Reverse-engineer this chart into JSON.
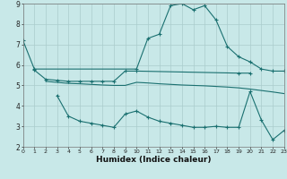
{
  "line1_x": [
    0,
    1,
    10,
    11,
    12,
    13,
    14,
    15,
    16,
    17,
    18,
    19,
    20,
    21,
    22,
    23
  ],
  "line1_y": [
    7.2,
    5.8,
    5.8,
    7.3,
    7.5,
    8.9,
    9.0,
    8.7,
    8.9,
    8.2,
    6.9,
    6.4,
    6.15,
    5.8,
    5.7,
    5.7
  ],
  "line2_x": [
    1,
    2,
    3,
    4,
    5,
    6,
    7,
    8,
    9,
    10,
    19,
    20
  ],
  "line2_y": [
    5.75,
    5.3,
    5.25,
    5.2,
    5.2,
    5.2,
    5.2,
    5.2,
    5.7,
    5.7,
    5.6,
    5.6
  ],
  "line3_x": [
    2,
    3,
    4,
    5,
    6,
    7,
    8,
    9,
    10,
    11,
    12,
    13,
    14,
    15,
    16,
    17,
    18,
    19,
    20,
    21,
    22,
    23
  ],
  "line3_y": [
    5.2,
    5.15,
    5.1,
    5.08,
    5.05,
    5.02,
    5.0,
    5.0,
    5.15,
    5.12,
    5.08,
    5.05,
    5.02,
    5.0,
    4.98,
    4.95,
    4.92,
    4.88,
    4.82,
    4.75,
    4.68,
    4.6
  ],
  "line4_x": [
    3,
    4,
    5,
    6,
    7,
    8,
    9,
    10,
    11,
    12,
    13,
    14,
    15,
    16,
    17,
    18,
    19,
    20,
    21,
    22,
    23
  ],
  "line4_y": [
    4.5,
    3.5,
    3.25,
    3.15,
    3.05,
    2.95,
    3.6,
    3.75,
    3.45,
    3.25,
    3.15,
    3.05,
    2.95,
    2.95,
    3.0,
    2.95,
    2.95,
    4.7,
    3.3,
    2.35,
    2.8
  ],
  "color": "#1a7070",
  "bg_color": "#c8e8e8",
  "grid_color": "#aacccc",
  "xlabel": "Humidex (Indice chaleur)",
  "xlim": [
    0,
    23
  ],
  "ylim": [
    2,
    9
  ],
  "yticks": [
    2,
    3,
    4,
    5,
    6,
    7,
    8,
    9
  ],
  "xticks": [
    0,
    1,
    2,
    3,
    4,
    5,
    6,
    7,
    8,
    9,
    10,
    11,
    12,
    13,
    14,
    15,
    16,
    17,
    18,
    19,
    20,
    21,
    22,
    23
  ]
}
